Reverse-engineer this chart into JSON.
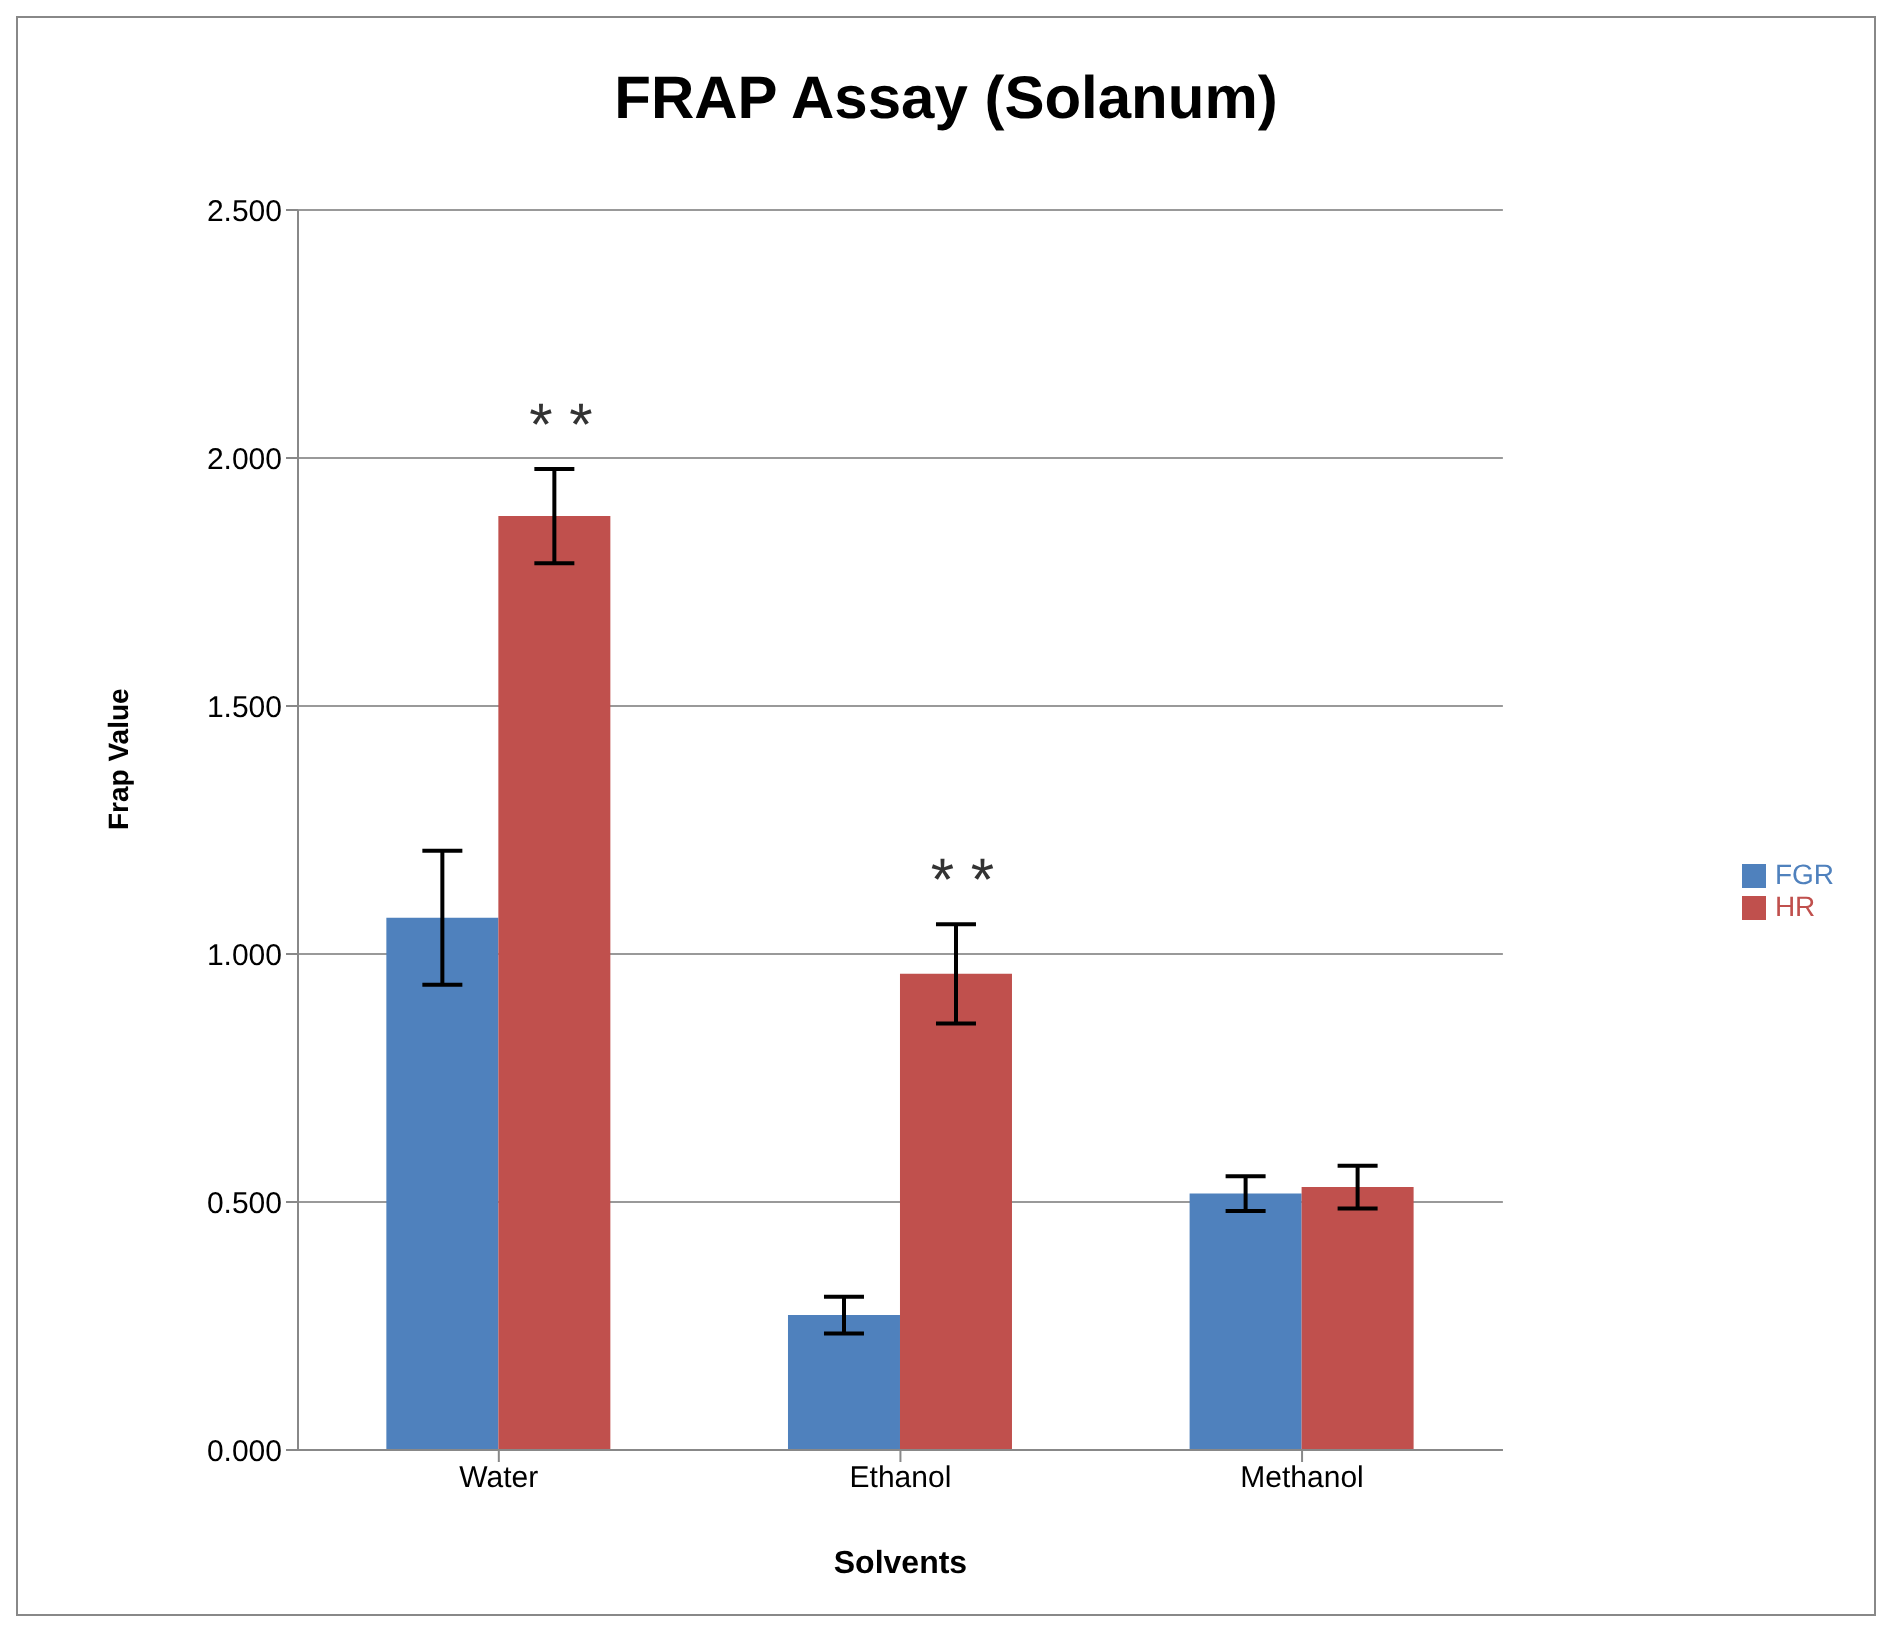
{
  "chart_data": {
    "type": "bar",
    "title": "FRAP Assay (Solanum)",
    "xlabel": "Solvents",
    "ylabel": "Frap Value",
    "categories": [
      "Water",
      "Ethanol",
      "Methanol"
    ],
    "series": [
      {
        "name": "FGR",
        "color": "#4f81bd",
        "values": [
          1.073,
          0.272,
          0.517
        ],
        "errors": [
          0.135,
          0.037,
          0.035
        ]
      },
      {
        "name": "HR",
        "color": "#c0504d",
        "values": [
          1.883,
          0.96,
          0.53
        ],
        "errors": [
          0.095,
          0.1,
          0.043
        ]
      }
    ],
    "ylim": [
      0,
      2.5
    ],
    "yticks": [
      {
        "value": 0,
        "label": "0.000"
      },
      {
        "value": 0.5,
        "label": "0.500"
      },
      {
        "value": 1,
        "label": "1.000"
      },
      {
        "value": 1.5,
        "label": "1.500"
      },
      {
        "value": 2,
        "label": "2.000"
      },
      {
        "value": 2.5,
        "label": "2.500"
      }
    ],
    "grid": "y",
    "legend": "right",
    "annotations": [
      "* *",
      "* *"
    ]
  }
}
